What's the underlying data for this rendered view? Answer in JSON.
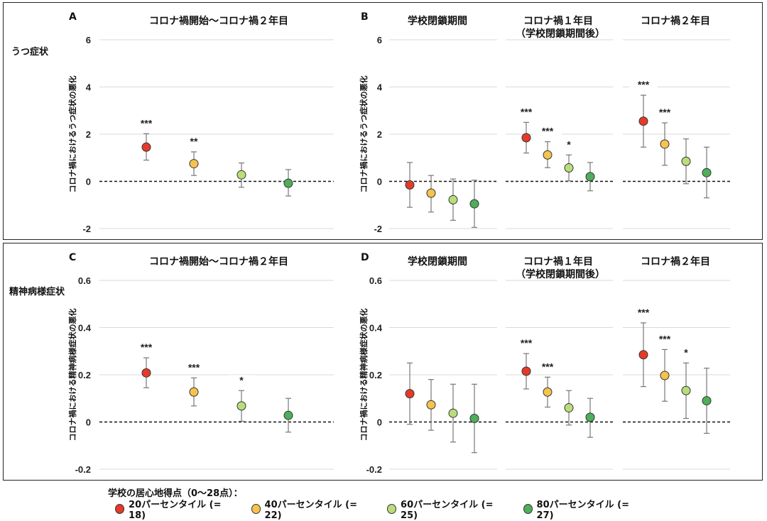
{
  "colors": {
    "p20": "#e53a2a",
    "p40": "#f6c34d",
    "p60": "#b9dd7a",
    "p80": "#4fae5a"
  },
  "rows": [
    {
      "label": "うつ症状",
      "ylabel": "コロナ禍におけるうつ症状の悪化",
      "yticks": [
        "6",
        "4",
        "2",
        "0",
        "-2"
      ],
      "ylim": [
        -2,
        6
      ]
    },
    {
      "label": "精神病様症状",
      "ylabel": "コロナ禍における精神病様症状の悪化",
      "yticks": [
        "0.6",
        "0.4",
        "0.2",
        "0",
        "-0.2"
      ],
      "ylim": [
        -0.2,
        0.6
      ]
    }
  ],
  "panels": [
    {
      "letter": "A",
      "title": "コロナ禍開始〜コロナ禍２年目"
    },
    {
      "letter": "B",
      "title": "学校閉鎖期間"
    },
    {
      "letter": "C",
      "title": "コロナ禍開始〜コロナ禍２年目"
    },
    {
      "letter": "D",
      "title": "学校閉鎖期間"
    }
  ],
  "sub_titles": {
    "year1": "コロナ禍１年目",
    "year1_sub": "（学校閉鎖期間後）",
    "year2": "コロナ禍２年目"
  },
  "legend": {
    "title": "学校の居心地得点（0〜28点）：",
    "items": [
      "20パーセンタイル (= 18)",
      "40パーセンタイル (= 22)",
      "60パーセンタイル (= 25)",
      "80パーセンタイル (= 27)"
    ]
  },
  "chart_data": [
    {
      "type": "scatter",
      "panel": "A",
      "title": "コロナ禍開始〜コロナ禍２年目",
      "ylabel": "コロナ禍におけるうつ症状の悪化",
      "ylim": [
        -2,
        6
      ],
      "series": [
        {
          "name": "20パーセンタイル (= 18)",
          "value": 1.45,
          "low": 0.9,
          "high": 2.02,
          "sig": "***"
        },
        {
          "name": "40パーセンタイル (= 22)",
          "value": 0.75,
          "low": 0.25,
          "high": 1.25,
          "sig": "**"
        },
        {
          "name": "60パーセンタイル (= 25)",
          "value": 0.28,
          "low": -0.25,
          "high": 0.78,
          "sig": ""
        },
        {
          "name": "80パーセンタイル (= 27)",
          "value": -0.08,
          "low": -0.62,
          "high": 0.5,
          "sig": ""
        }
      ]
    },
    {
      "type": "scatter",
      "panel": "B-学校閉鎖期間",
      "title": "学校閉鎖期間",
      "ylim": [
        -2,
        6
      ],
      "series": [
        {
          "name": "20パーセンタイル (= 18)",
          "value": -0.15,
          "low": -1.1,
          "high": 0.8,
          "sig": ""
        },
        {
          "name": "40パーセンタイル (= 22)",
          "value": -0.5,
          "low": -1.3,
          "high": 0.25,
          "sig": ""
        },
        {
          "name": "60パーセンタイル (= 25)",
          "value": -0.78,
          "low": -1.65,
          "high": 0.1,
          "sig": ""
        },
        {
          "name": "80パーセンタイル (= 27)",
          "value": -0.95,
          "low": -1.95,
          "high": 0.05,
          "sig": ""
        }
      ]
    },
    {
      "type": "scatter",
      "panel": "B-コロナ禍１年目",
      "title": "コロナ禍１年目（学校閉鎖期間後）",
      "ylim": [
        -2,
        6
      ],
      "series": [
        {
          "name": "20パーセンタイル (= 18)",
          "value": 1.85,
          "low": 1.2,
          "high": 2.5,
          "sig": "***"
        },
        {
          "name": "40パーセンタイル (= 22)",
          "value": 1.12,
          "low": 0.58,
          "high": 1.68,
          "sig": "***"
        },
        {
          "name": "60パーセンタイル (= 25)",
          "value": 0.57,
          "low": 0.02,
          "high": 1.12,
          "sig": "*"
        },
        {
          "name": "80パーセンタイル (= 27)",
          "value": 0.2,
          "low": -0.4,
          "high": 0.8,
          "sig": ""
        }
      ]
    },
    {
      "type": "scatter",
      "panel": "B-コロナ禍２年目",
      "title": "コロナ禍２年目",
      "ylim": [
        -2,
        6
      ],
      "series": [
        {
          "name": "20パーセンタイル (= 18)",
          "value": 2.55,
          "low": 1.45,
          "high": 3.65,
          "sig": "***"
        },
        {
          "name": "40パーセンタイル (= 22)",
          "value": 1.58,
          "low": 0.68,
          "high": 2.48,
          "sig": "***"
        },
        {
          "name": "60パーセンタイル (= 25)",
          "value": 0.85,
          "low": -0.1,
          "high": 1.8,
          "sig": ""
        },
        {
          "name": "80パーセンタイル (= 27)",
          "value": 0.37,
          "low": -0.7,
          "high": 1.45,
          "sig": ""
        }
      ]
    },
    {
      "type": "scatter",
      "panel": "C",
      "title": "コロナ禍開始〜コロナ禍２年目",
      "ylabel": "コロナ禍における精神病様症状の悪化",
      "ylim": [
        -0.2,
        0.6
      ],
      "series": [
        {
          "name": "20パーセンタイル (= 18)",
          "value": 0.208,
          "low": 0.145,
          "high": 0.272,
          "sig": "***"
        },
        {
          "name": "40パーセンタイル (= 22)",
          "value": 0.127,
          "low": 0.068,
          "high": 0.187,
          "sig": "***"
        },
        {
          "name": "60パーセンタイル (= 25)",
          "value": 0.068,
          "low": 0.003,
          "high": 0.133,
          "sig": "*"
        },
        {
          "name": "80パーセンタイル (= 27)",
          "value": 0.028,
          "low": -0.043,
          "high": 0.1,
          "sig": ""
        }
      ]
    },
    {
      "type": "scatter",
      "panel": "D-学校閉鎖期間",
      "title": "学校閉鎖期間",
      "ylim": [
        -0.2,
        0.6
      ],
      "series": [
        {
          "name": "20パーセンタイル (= 18)",
          "value": 0.12,
          "low": -0.01,
          "high": 0.25,
          "sig": ""
        },
        {
          "name": "40パーセンタイル (= 22)",
          "value": 0.073,
          "low": -0.035,
          "high": 0.18,
          "sig": ""
        },
        {
          "name": "60パーセンタイル (= 25)",
          "value": 0.037,
          "low": -0.085,
          "high": 0.16,
          "sig": ""
        },
        {
          "name": "80パーセンタイル (= 27)",
          "value": 0.015,
          "low": -0.13,
          "high": 0.16,
          "sig": ""
        }
      ]
    },
    {
      "type": "scatter",
      "panel": "D-コロナ禍１年目",
      "title": "コロナ禍１年目（学校閉鎖期間後）",
      "ylim": [
        -0.2,
        0.6
      ],
      "series": [
        {
          "name": "20パーセンタイル (= 18)",
          "value": 0.215,
          "low": 0.14,
          "high": 0.29,
          "sig": "***"
        },
        {
          "name": "40パーセンタイル (= 22)",
          "value": 0.127,
          "low": 0.063,
          "high": 0.19,
          "sig": "***"
        },
        {
          "name": "60パーセンタイル (= 25)",
          "value": 0.06,
          "low": -0.013,
          "high": 0.133,
          "sig": ""
        },
        {
          "name": "80パーセンタイル (= 27)",
          "value": 0.02,
          "low": -0.065,
          "high": 0.1,
          "sig": ""
        }
      ]
    },
    {
      "type": "scatter",
      "panel": "D-コロナ禍２年目",
      "title": "コロナ禍２年目",
      "ylim": [
        -0.2,
        0.6
      ],
      "series": [
        {
          "name": "20パーセンタイル (= 18)",
          "value": 0.285,
          "low": 0.15,
          "high": 0.42,
          "sig": "***"
        },
        {
          "name": "40パーセンタイル (= 22)",
          "value": 0.197,
          "low": 0.088,
          "high": 0.307,
          "sig": "***"
        },
        {
          "name": "60パーセンタイル (= 25)",
          "value": 0.133,
          "low": 0.015,
          "high": 0.25,
          "sig": "*"
        },
        {
          "name": "80パーセンタイル (= 27)",
          "value": 0.09,
          "low": -0.048,
          "high": 0.228,
          "sig": ""
        }
      ]
    }
  ]
}
